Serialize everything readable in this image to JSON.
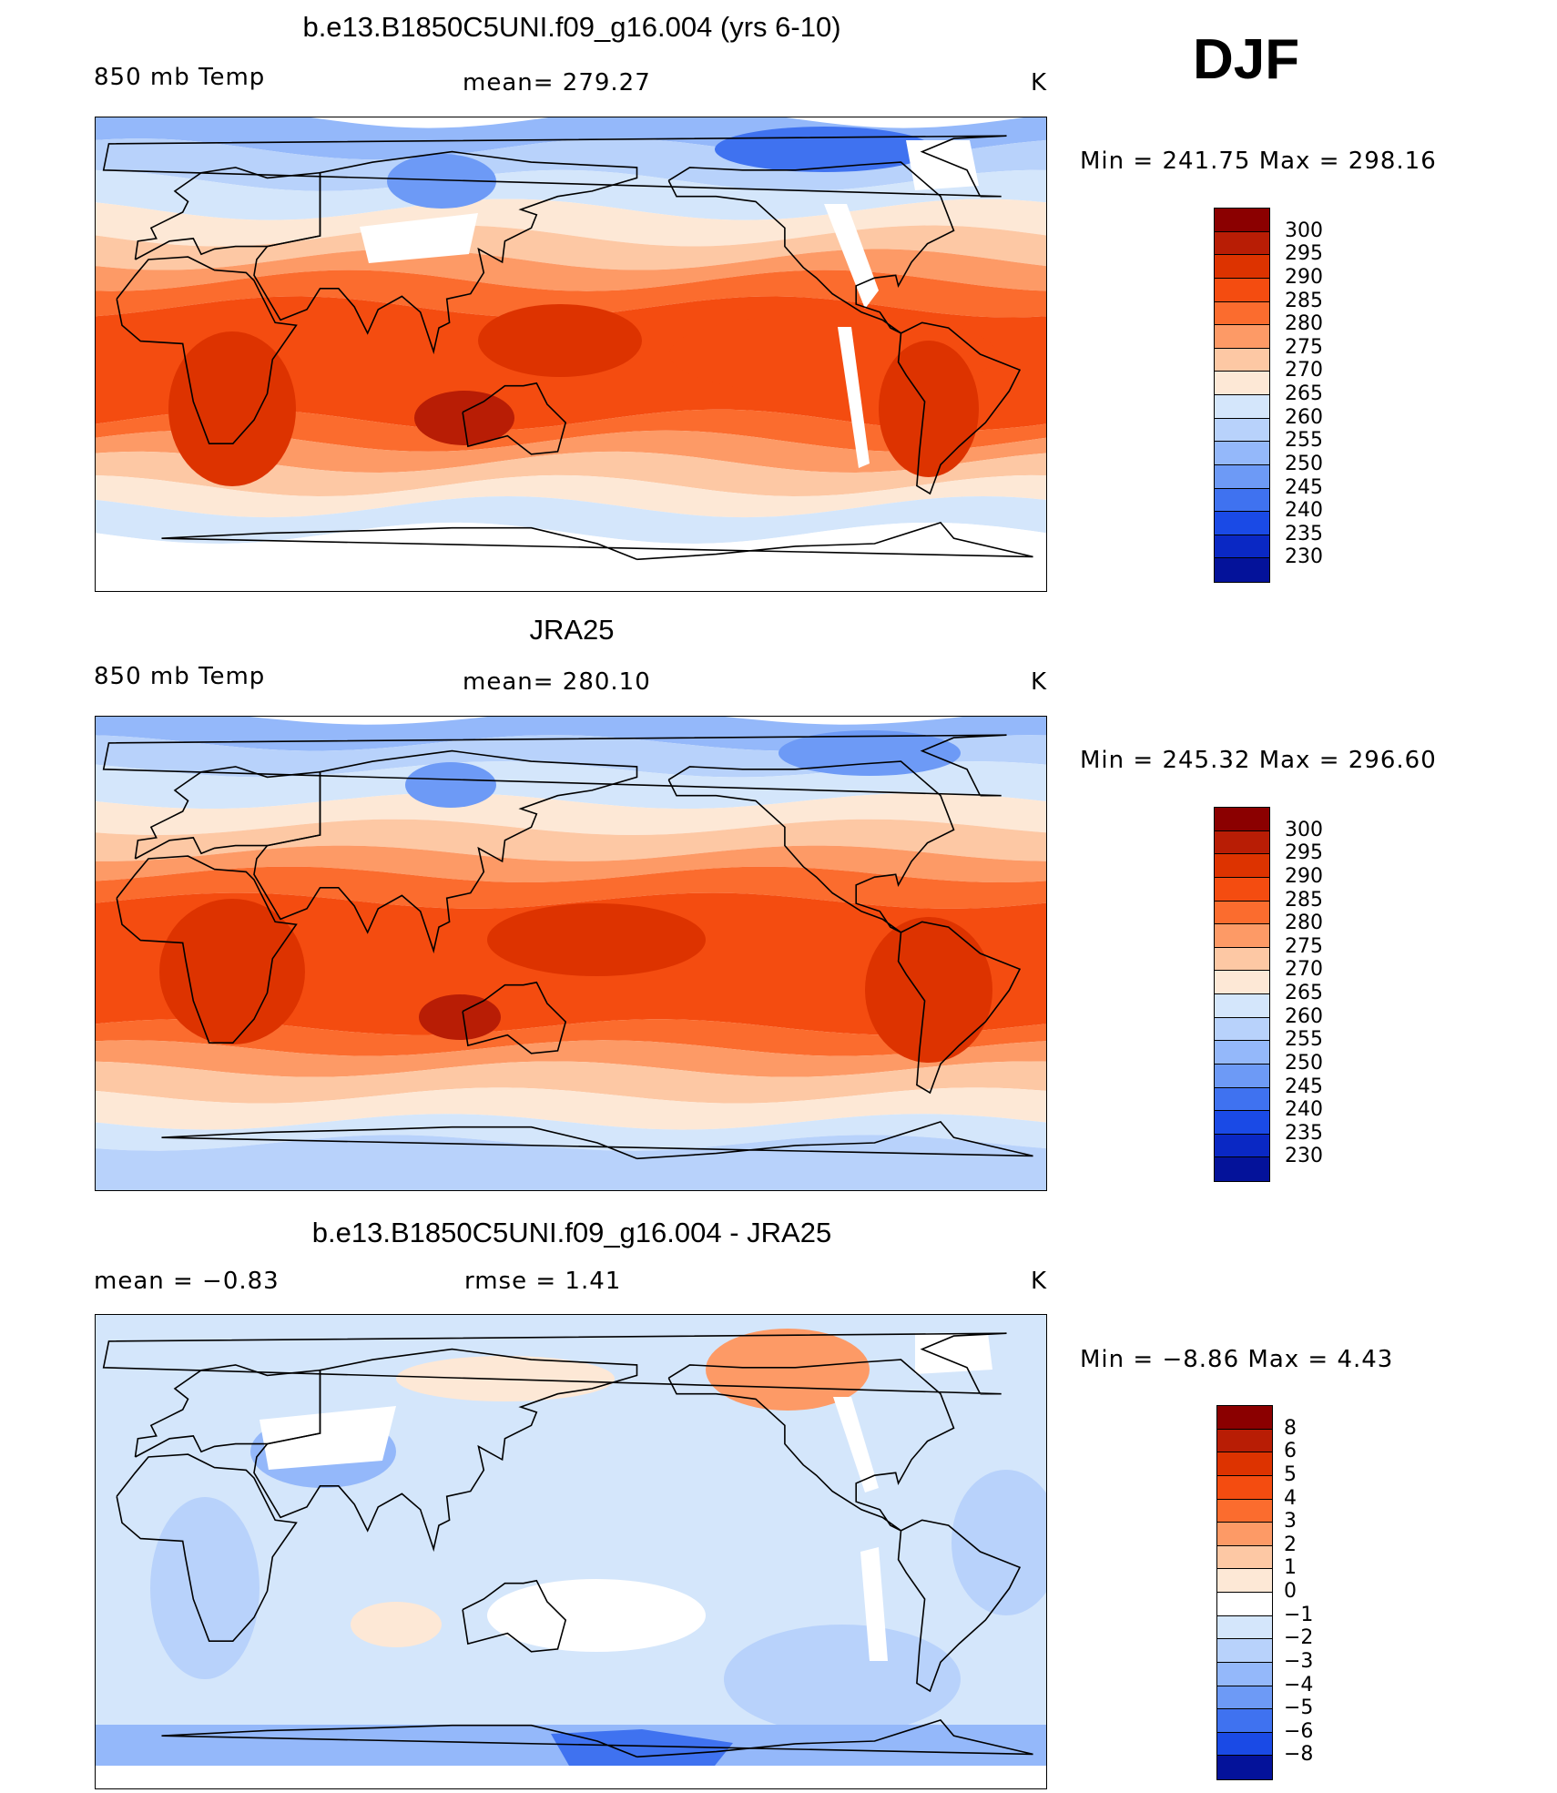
{
  "season": "DJF",
  "panels": [
    {
      "title": "b.e13.B1850C5UNI.f09_g16.004 (yrs 6-10)",
      "left_label": "850 mb Temp",
      "center_label": "mean= 279.27",
      "units": "K",
      "minmax": "Min  =  241.75  Max  =  298.16",
      "kind": "model"
    },
    {
      "title": "JRA25",
      "left_label": "850 mb Temp",
      "center_label": "mean= 280.10",
      "units": "K",
      "minmax": "Min  =  245.32  Max  =  296.60",
      "kind": "obs"
    },
    {
      "title": "b.e13.B1850C5UNI.f09_g16.004 - JRA25",
      "left_label": "mean  =    −0.83",
      "center_label": "rmse  =     1.41",
      "units": "K",
      "minmax": "Min  =    −8.86  Max  =     4.43",
      "kind": "diff"
    }
  ],
  "colorbars": {
    "temperature": {
      "labels": [
        "300",
        "295",
        "290",
        "285",
        "280",
        "275",
        "270",
        "265",
        "260",
        "255",
        "250",
        "245",
        "240",
        "235",
        "230"
      ],
      "colors": [
        "#8b0000",
        "#b81d05",
        "#dd3300",
        "#f44c10",
        "#fb6c2e",
        "#fd9a66",
        "#fdc8a4",
        "#fde8d6",
        "#d4e6fb",
        "#b8d2fb",
        "#94b8fa",
        "#6d9af6",
        "#3f72f0",
        "#1a4ae6",
        "#0a28c4",
        "#04129a"
      ]
    },
    "difference": {
      "labels": [
        "8",
        "6",
        "5",
        "4",
        "3",
        "2",
        "1",
        "0",
        "−1",
        "−2",
        "−3",
        "−4",
        "−5",
        "−6",
        "−8"
      ],
      "colors": [
        "#8b0000",
        "#b81d05",
        "#dd3300",
        "#f44c10",
        "#fb6c2e",
        "#fd9a66",
        "#fdc8a4",
        "#fde8d6",
        "#ffffff",
        "#d4e6fb",
        "#b8d2fb",
        "#94b8fa",
        "#6d9af6",
        "#3f72f0",
        "#1a4ae6",
        "#04129a"
      ]
    }
  },
  "missing_data_color": "#ffffff",
  "coastline_color": "#000000"
}
